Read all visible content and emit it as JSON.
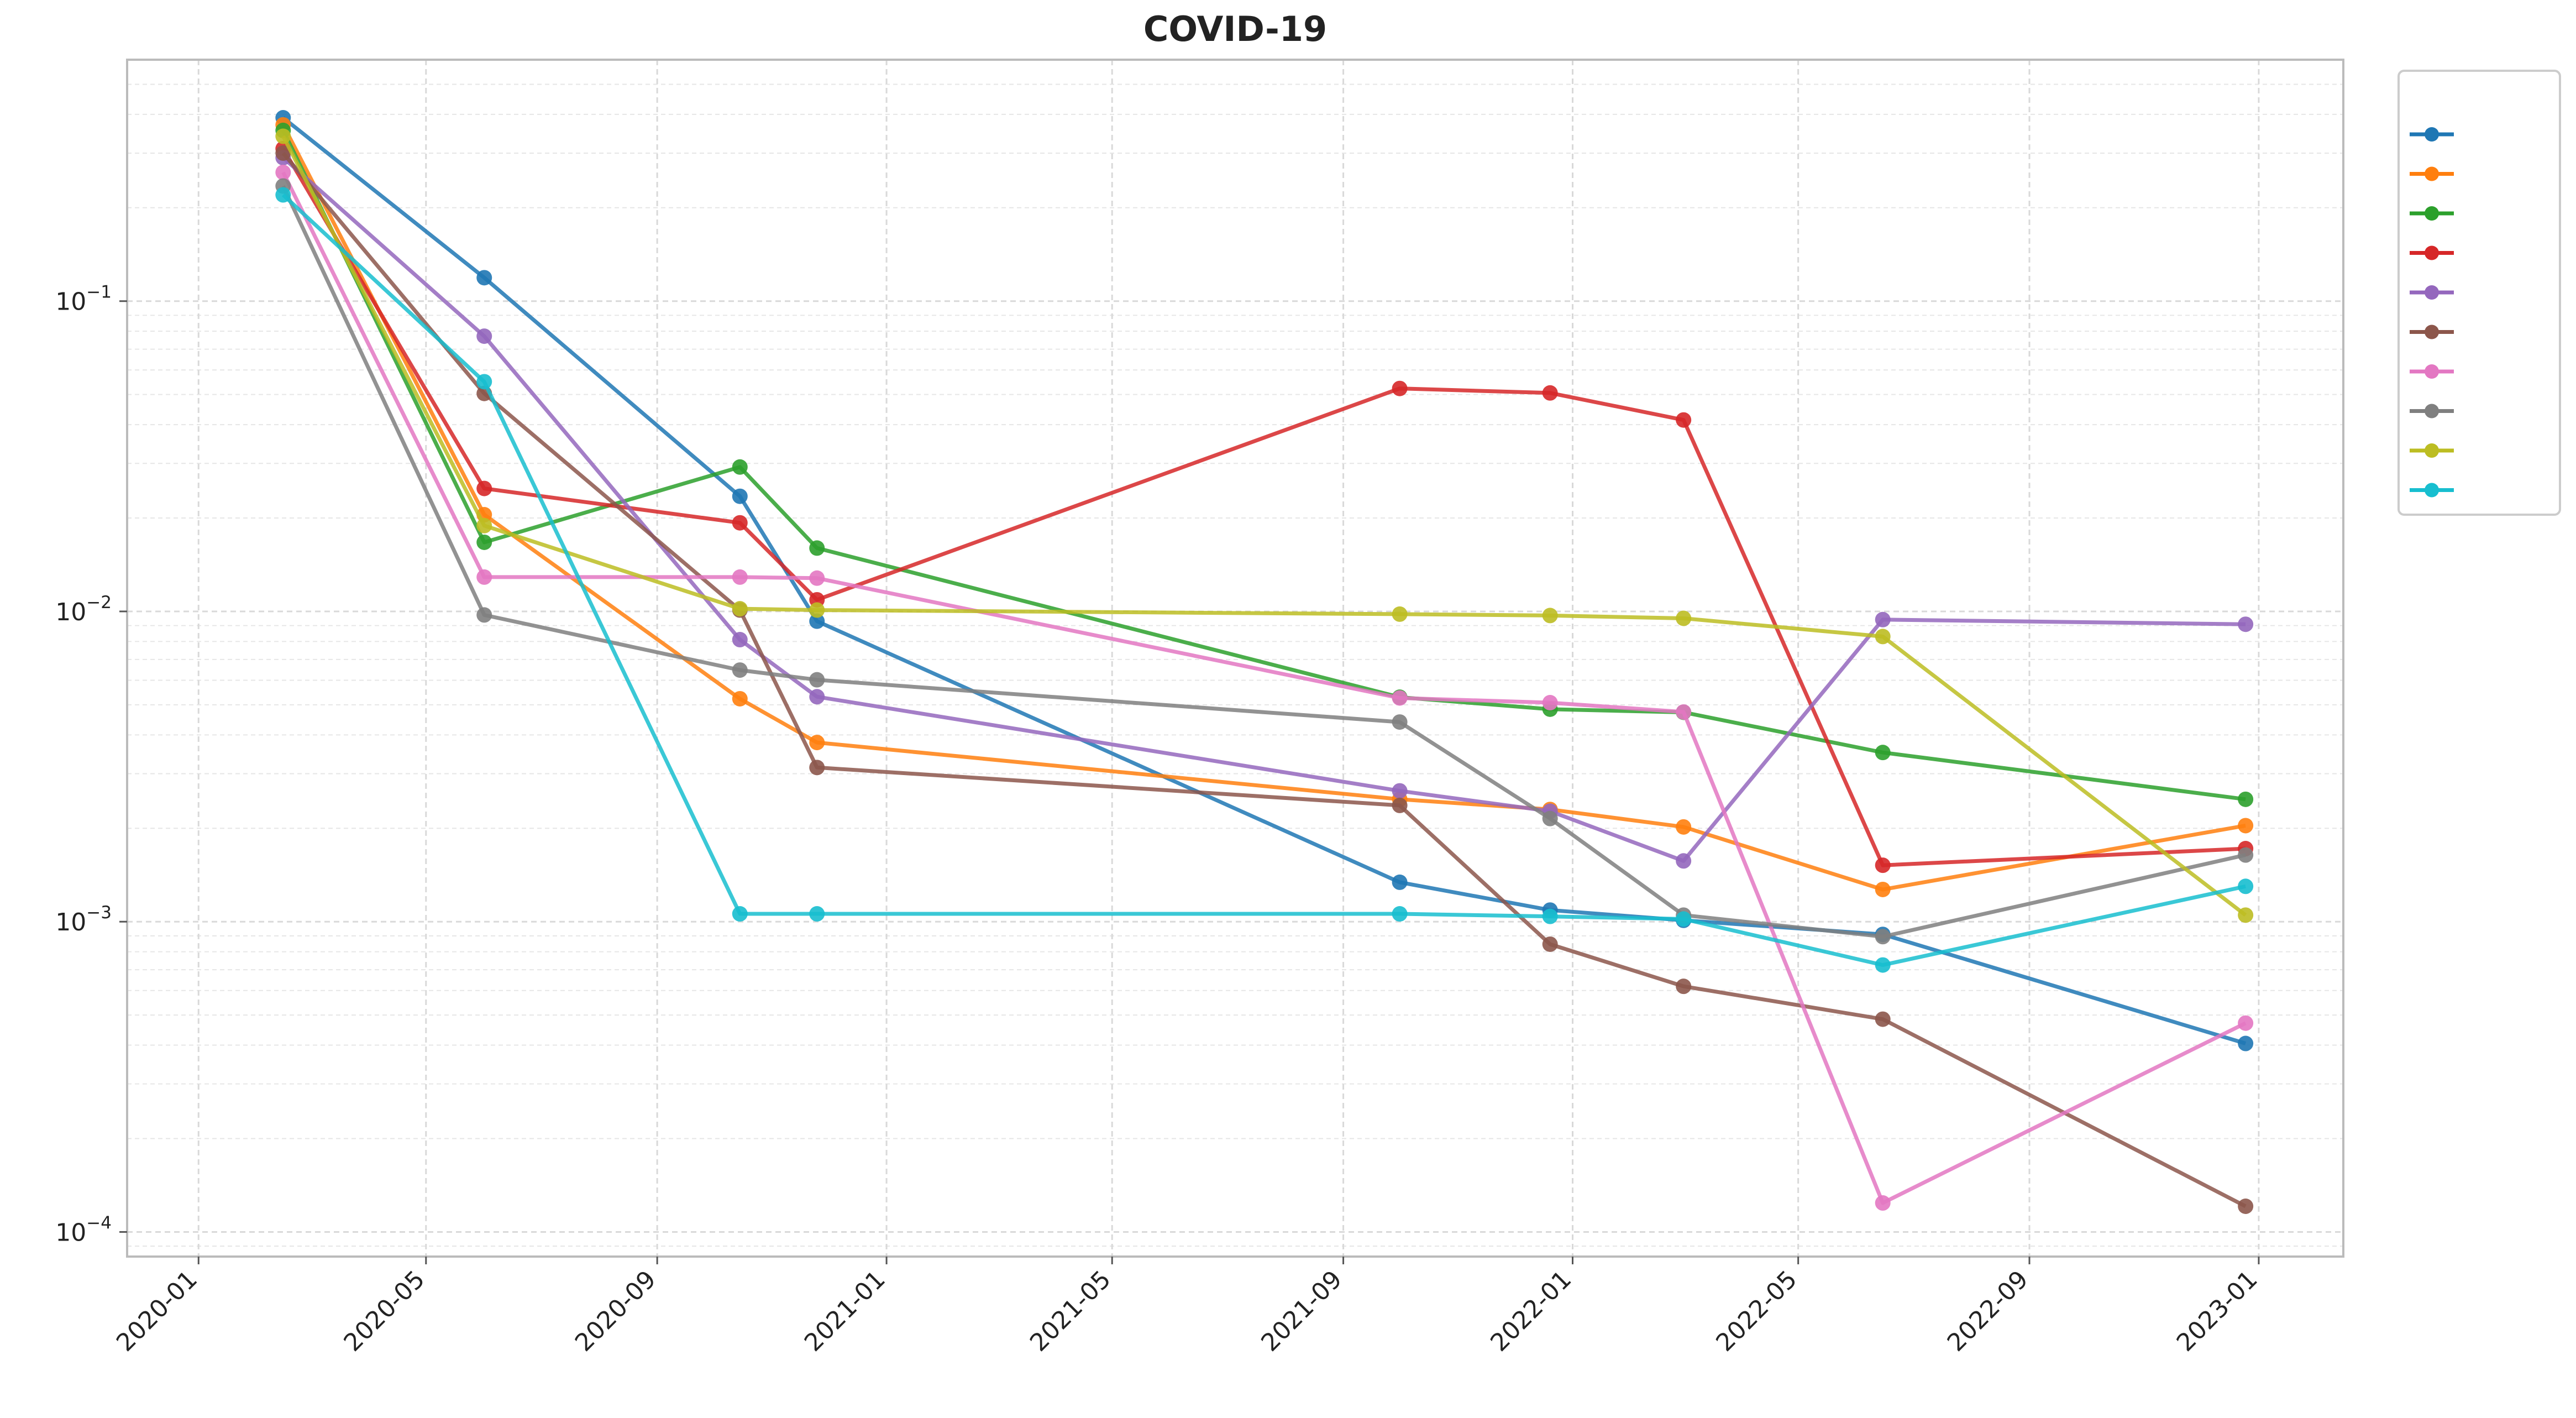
{
  "chart_data": {
    "type": "line",
    "title_prefix": "",
    "title_bold": "COVID-19",
    "title_suffix": "",
    "xlabel": "",
    "ylabel": "",
    "y_scale": "log",
    "ylim": [
      8.33e-05,
      0.6
    ],
    "xlim": [
      "2019-11-24",
      "2023-02-15"
    ],
    "x_ticks": [
      "2020-01",
      "2020-05",
      "2020-09",
      "2021-01",
      "2021-05",
      "2021-09",
      "2022-01",
      "2022-05",
      "2022-09",
      "2023-01"
    ],
    "y_ticks": [
      {
        "value": 0.0001,
        "base": "10",
        "exp": "−4"
      },
      {
        "value": 0.001,
        "base": "10",
        "exp": "−3"
      },
      {
        "value": 0.01,
        "base": "10",
        "exp": "−2"
      },
      {
        "value": 0.1,
        "base": "10",
        "exp": "−1"
      }
    ],
    "grid": true,
    "legend": {
      "title": "",
      "placement": "outside-top-right"
    },
    "series": [
      {
        "color": "#1f77b4",
        "x": [
          "2020-02-15",
          "2020-06-01",
          "2020-10-15",
          "2020-11-25",
          "2021-10-01",
          "2021-12-20",
          "2022-03-01",
          "2022-06-15",
          "2022-12-25"
        ],
        "y": [
          0.39,
          0.119,
          0.0235,
          0.0093,
          0.00134,
          0.00109,
          0.00101,
          0.00091,
          0.000405
        ]
      },
      {
        "color": "#ff7f0e",
        "x": [
          "2020-02-15",
          "2020-06-01",
          "2020-10-15",
          "2020-11-25",
          "2021-10-01",
          "2021-12-20",
          "2022-03-01",
          "2022-06-15",
          "2022-12-25"
        ],
        "y": [
          0.37,
          0.0205,
          0.00523,
          0.00378,
          0.00248,
          0.0023,
          0.00202,
          0.00127,
          0.00204
        ]
      },
      {
        "color": "#2ca02c",
        "x": [
          "2020-02-15",
          "2020-06-01",
          "2020-10-15",
          "2020-11-25",
          "2021-10-01",
          "2021-12-20",
          "2022-03-01",
          "2022-06-15",
          "2022-12-25"
        ],
        "y": [
          0.355,
          0.0167,
          0.0292,
          0.016,
          0.00529,
          0.00484,
          0.00473,
          0.00351,
          0.00248
        ]
      },
      {
        "color": "#d62728",
        "x": [
          "2020-02-15",
          "2020-06-01",
          "2020-10-15",
          "2020-11-25",
          "2021-10-01",
          "2021-12-20",
          "2022-03-01",
          "2022-06-15",
          "2022-12-25"
        ],
        "y": [
          0.31,
          0.0249,
          0.0193,
          0.0109,
          0.0523,
          0.0506,
          0.0414,
          0.00152,
          0.00172
        ]
      },
      {
        "color": "#9467bd",
        "x": [
          "2020-02-15",
          "2020-06-01",
          "2020-10-15",
          "2020-11-25",
          "2021-10-01",
          "2021-12-20",
          "2022-03-01",
          "2022-06-15",
          "2022-12-25"
        ],
        "y": [
          0.29,
          0.0771,
          0.00811,
          0.00531,
          0.00264,
          0.00227,
          0.00157,
          0.00941,
          0.00909
        ]
      },
      {
        "color": "#8c564b",
        "x": [
          "2020-02-15",
          "2020-06-01",
          "2020-10-15",
          "2020-11-25",
          "2021-10-01",
          "2021-12-20",
          "2022-03-01",
          "2022-06-15",
          "2022-12-25"
        ],
        "y": [
          0.3,
          0.0504,
          0.0101,
          0.00314,
          0.00237,
          0.000846,
          0.000619,
          0.000485,
          0.000121
        ]
      },
      {
        "color": "#e377c2",
        "x": [
          "2020-02-15",
          "2020-06-01",
          "2020-10-15",
          "2020-11-25",
          "2021-10-01",
          "2021-12-20",
          "2022-03-01",
          "2022-06-15",
          "2022-12-25"
        ],
        "y": [
          0.26,
          0.0129,
          0.0129,
          0.0128,
          0.00526,
          0.00508,
          0.00474,
          0.000124,
          0.000471
        ]
      },
      {
        "color": "#7f7f7f",
        "x": [
          "2020-02-15",
          "2020-06-01",
          "2020-10-15",
          "2020-11-25",
          "2021-10-01",
          "2021-12-20",
          "2022-03-01",
          "2022-06-15",
          "2022-12-25"
        ],
        "y": [
          0.235,
          0.00974,
          0.00647,
          0.00602,
          0.0044,
          0.00215,
          0.00105,
          0.000895,
          0.00164
        ]
      },
      {
        "color": "#bcbd22",
        "x": [
          "2020-02-15",
          "2020-06-01",
          "2020-10-15",
          "2020-11-25",
          "2021-10-01",
          "2021-12-20",
          "2022-03-01",
          "2022-06-15",
          "2022-12-25"
        ],
        "y": [
          0.34,
          0.0189,
          0.0102,
          0.0101,
          0.0098,
          0.0097,
          0.0095,
          0.0083,
          0.00105
        ]
      },
      {
        "color": "#17becf",
        "x": [
          "2020-02-15",
          "2020-06-01",
          "2020-10-15",
          "2020-11-25",
          "2021-10-01",
          "2021-12-20",
          "2022-03-01",
          "2022-06-15",
          "2022-12-25"
        ],
        "y": [
          0.22,
          0.055,
          0.00106,
          0.00106,
          0.00106,
          0.00104,
          0.00102,
          0.000725,
          0.0013
        ]
      }
    ]
  }
}
